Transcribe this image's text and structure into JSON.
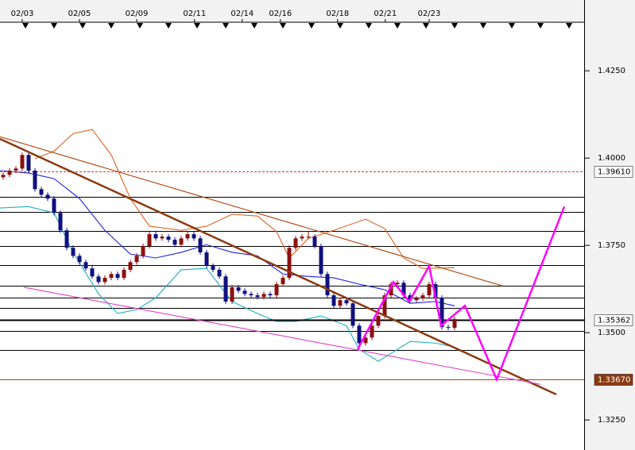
{
  "chart_data": {
    "type": "candlestick",
    "xlim": [
      -0.5,
      91.375
    ],
    "ylim": [
      1.3164,
      1.4389
    ],
    "xticks": [
      {
        "value": 3,
        "label": "02/03"
      },
      {
        "value": 12,
        "label": "02/05"
      },
      {
        "value": 21,
        "label": "02/09"
      },
      {
        "value": 30.1,
        "label": "02/11"
      },
      {
        "value": 37.6,
        "label": "02/14"
      },
      {
        "value": 43.6,
        "label": "02/16"
      },
      {
        "value": 52.6,
        "label": "02/18"
      },
      {
        "value": 60.1,
        "label": "02/21"
      },
      {
        "value": 67,
        "label": "02/23"
      }
    ],
    "yticks": [
      {
        "value": 1.425,
        "label": "1.4250"
      },
      {
        "value": 1.4,
        "label": "1.4000"
      },
      {
        "value": 1.375,
        "label": "1.3750"
      },
      {
        "value": 1.35,
        "label": "1.3500"
      },
      {
        "value": 1.325,
        "label": "1.3250"
      }
    ],
    "up_color": "#8b1010",
    "down_color": "#101080",
    "ohlc": [
      [
        1.3945,
        1.3959,
        1.3938,
        1.3952
      ],
      [
        1.3952,
        1.3971,
        1.3945,
        1.3964
      ],
      [
        1.3964,
        1.3977,
        1.3957,
        1.397
      ],
      [
        1.397,
        1.4016,
        1.3963,
        1.4009
      ],
      [
        1.4009,
        1.4016,
        1.3957,
        1.3964
      ],
      [
        1.3964,
        1.3971,
        1.3904,
        1.3911
      ],
      [
        1.3911,
        1.3918,
        1.3888,
        1.3895
      ],
      [
        1.3895,
        1.3902,
        1.3877,
        1.3884
      ],
      [
        1.3884,
        1.3891,
        1.3836,
        1.3843
      ],
      [
        1.3843,
        1.385,
        1.3786,
        1.3793
      ],
      [
        1.3793,
        1.38,
        1.3736,
        1.3743
      ],
      [
        1.3743,
        1.375,
        1.3713,
        1.372
      ],
      [
        1.372,
        1.3727,
        1.3695,
        1.3702
      ],
      [
        1.3702,
        1.3709,
        1.3677,
        1.3684
      ],
      [
        1.3684,
        1.3691,
        1.3654,
        1.3661
      ],
      [
        1.3661,
        1.3668,
        1.3638,
        1.3645
      ],
      [
        1.3645,
        1.3664,
        1.3638,
        1.3657
      ],
      [
        1.3657,
        1.3675,
        1.365,
        1.3668
      ],
      [
        1.3668,
        1.3675,
        1.365,
        1.3657
      ],
      [
        1.3657,
        1.3687,
        1.365,
        1.368
      ],
      [
        1.368,
        1.3709,
        1.3673,
        1.3702
      ],
      [
        1.3702,
        1.3727,
        1.3695,
        1.372
      ],
      [
        1.372,
        1.3755,
        1.3713,
        1.3748
      ],
      [
        1.3748,
        1.3789,
        1.3741,
        1.3782
      ],
      [
        1.3782,
        1.3789,
        1.3763,
        1.377
      ],
      [
        1.377,
        1.3782,
        1.3763,
        1.3775
      ],
      [
        1.3775,
        1.3782,
        1.3759,
        1.3766
      ],
      [
        1.3766,
        1.3773,
        1.3745,
        1.3752
      ],
      [
        1.3752,
        1.3777,
        1.3745,
        1.377
      ],
      [
        1.377,
        1.3789,
        1.3763,
        1.3782
      ],
      [
        1.3782,
        1.3789,
        1.3763,
        1.377
      ],
      [
        1.377,
        1.3777,
        1.3723,
        1.373
      ],
      [
        1.373,
        1.3737,
        1.3684,
        1.3691
      ],
      [
        1.3691,
        1.3698,
        1.3673,
        1.368
      ],
      [
        1.368,
        1.3687,
        1.3654,
        1.3661
      ],
      [
        1.3661,
        1.3668,
        1.3582,
        1.3589
      ],
      [
        1.3589,
        1.3637,
        1.3582,
        1.363
      ],
      [
        1.363,
        1.3637,
        1.3613,
        1.362
      ],
      [
        1.362,
        1.3627,
        1.3604,
        1.3611
      ],
      [
        1.3611,
        1.3618,
        1.36,
        1.3607
      ],
      [
        1.3607,
        1.3614,
        1.3595,
        1.3602
      ],
      [
        1.3602,
        1.3618,
        1.3595,
        1.3611
      ],
      [
        1.3611,
        1.3618,
        1.36,
        1.3607
      ],
      [
        1.3607,
        1.3646,
        1.36,
        1.3639
      ],
      [
        1.3639,
        1.3664,
        1.3632,
        1.3657
      ],
      [
        1.3657,
        1.375,
        1.365,
        1.3743
      ],
      [
        1.3743,
        1.3777,
        1.3736,
        1.377
      ],
      [
        1.377,
        1.3782,
        1.3763,
        1.3775
      ],
      [
        1.3775,
        1.379,
        1.3768,
        1.3775
      ],
      [
        1.3775,
        1.3782,
        1.3741,
        1.3748
      ],
      [
        1.3748,
        1.3755,
        1.3661,
        1.3668
      ],
      [
        1.3668,
        1.3675,
        1.36,
        1.3607
      ],
      [
        1.3607,
        1.3614,
        1.357,
        1.3577
      ],
      [
        1.3577,
        1.36,
        1.357,
        1.3593
      ],
      [
        1.3593,
        1.36,
        1.3577,
        1.3584
      ],
      [
        1.3584,
        1.3591,
        1.3513,
        1.352
      ],
      [
        1.352,
        1.3527,
        1.3463,
        1.347
      ],
      [
        1.347,
        1.3493,
        1.3463,
        1.3486
      ],
      [
        1.3486,
        1.3527,
        1.3479,
        1.352
      ],
      [
        1.352,
        1.3555,
        1.3513,
        1.3548
      ],
      [
        1.3548,
        1.3614,
        1.3541,
        1.3607
      ],
      [
        1.3607,
        1.3646,
        1.36,
        1.3639
      ],
      [
        1.3639,
        1.365,
        1.3632,
        1.3643
      ],
      [
        1.3643,
        1.365,
        1.36,
        1.3607
      ],
      [
        1.3607,
        1.3614,
        1.3586,
        1.3593
      ],
      [
        1.3593,
        1.3605,
        1.3586,
        1.3598
      ],
      [
        1.3598,
        1.3614,
        1.3591,
        1.3607
      ],
      [
        1.3607,
        1.3646,
        1.36,
        1.3639
      ],
      [
        1.3639,
        1.3646,
        1.3593,
        1.36
      ],
      [
        1.36,
        1.3607,
        1.3509,
        1.3516
      ],
      [
        1.3516,
        1.3523,
        1.3507,
        1.3514
      ],
      [
        1.3514,
        1.3546,
        1.3507,
        1.3539
      ]
    ],
    "levels": {
      "color": "#000000",
      "values": [
        1.3889,
        1.3845,
        1.3791,
        1.3748,
        1.3693,
        1.3634,
        1.36,
        1.357,
        1.3505,
        1.345
      ]
    },
    "price_lines": [
      {
        "value": 1.3961,
        "label": "1.39610",
        "color": "#e03030",
        "dashed": true,
        "label_fill": "#ffffff",
        "label_color": "#000000"
      },
      {
        "value": 1.35362,
        "label": "1.35362",
        "color": "#000000",
        "dashed": false,
        "label_fill": "#ffffff",
        "label_color": "#000000"
      },
      {
        "value": 1.3367,
        "label": "1.33670",
        "color": "#b04010",
        "dashed": false,
        "label_fill": "#8b3a10",
        "label_color": "#ffffff"
      }
    ],
    "overlays": [
      {
        "color": "#e06020",
        "emphasis": false,
        "x": [
          5,
          8,
          11,
          14,
          17,
          20,
          23,
          28,
          32,
          36,
          40,
          43,
          45,
          48,
          52,
          57,
          60,
          63,
          66,
          71
        ],
        "values": [
          1.3998,
          1.402,
          1.407,
          1.4082,
          1.4009,
          1.3884,
          1.3805,
          1.3793,
          1.3805,
          1.3839,
          1.3834,
          1.3789,
          1.3714,
          1.377,
          1.3793,
          1.3825,
          1.3798,
          1.3714,
          1.3684,
          1.3686
        ]
      },
      {
        "color": "#2020e0",
        "emphasis": false,
        "x": [
          -0.5,
          4,
          8,
          12,
          16,
          20,
          24,
          28,
          32,
          36,
          40,
          44,
          48,
          52,
          56,
          60,
          64,
          68,
          71
        ],
        "values": [
          1.3964,
          1.3957,
          1.3941,
          1.3884,
          1.3793,
          1.3725,
          1.3714,
          1.373,
          1.3752,
          1.373,
          1.372,
          1.3668,
          1.3661,
          1.3657,
          1.3639,
          1.3623,
          1.3584,
          1.3589,
          1.3577
        ]
      },
      {
        "color": "#20b0c0",
        "emphasis": false,
        "x": [
          -0.5,
          4,
          8,
          11,
          15,
          18,
          21,
          24,
          28,
          32,
          36,
          40,
          43,
          46,
          50,
          54,
          56,
          59,
          62,
          64,
          68,
          71
        ],
        "values": [
          1.3857,
          1.3861,
          1.3843,
          1.373,
          1.3611,
          1.3555,
          1.3566,
          1.36,
          1.368,
          1.3684,
          1.3589,
          1.3555,
          1.3532,
          1.3532,
          1.3548,
          1.352,
          1.3452,
          1.3418,
          1.3452,
          1.3475,
          1.347,
          1.3459
        ]
      },
      {
        "color": "#b04810",
        "emphasis": false,
        "x": [
          -0.5,
          78.5
        ],
        "values": [
          1.4061,
          1.3634
        ]
      },
      {
        "color": "#8b3a10",
        "emphasis": true,
        "x": [
          -0.5,
          87
        ],
        "values": [
          1.4055,
          1.3323
        ]
      },
      {
        "color": "#e040c0",
        "emphasis": false,
        "x": [
          3.25,
          84.5
        ],
        "values": [
          1.363,
          1.3352
        ]
      },
      {
        "color": "#ff00ff",
        "emphasis": true,
        "x": [
          55.75,
          61.375,
          63.875,
          67,
          68.875,
          72.625,
          77.625,
          88.25
        ],
        "values": [
          1.3452,
          1.3645,
          1.3589,
          1.3691,
          1.352,
          1.3577,
          1.3366,
          1.3861
        ]
      }
    ]
  }
}
